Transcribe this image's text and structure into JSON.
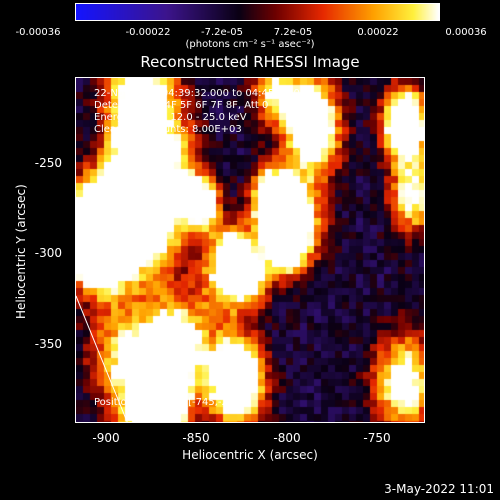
{
  "colorbar": {
    "ticks": [
      "-0.00036",
      "-0.00022",
      "-7.2e-05",
      "7.2e-05",
      "0.00022",
      "0.00036"
    ],
    "units": "(photons cm⁻² s⁻¹ asec⁻²)"
  },
  "title": "Reconstructed RHESSI Image",
  "info": {
    "time": "22-Nov-2005 04:39:32.000 to 04:45:32.000",
    "detectors": "Detectors: 3F 4F 5F 6F 7F 8F, Att 0",
    "energy": "Energy Range: 12.0 - 25.0 keV",
    "clean": "Clean    Total counts: 8.00E+03",
    "peak": "Position of peak = [-745,-226]"
  },
  "axes": {
    "xlabel": "Heliocentric X (arcsec)",
    "ylabel": "Heliocentric Y (arcsec)",
    "xticks": [
      "-900",
      "-850",
      "-800",
      "-750"
    ],
    "yticks": [
      "-250",
      "-300",
      "-350"
    ]
  },
  "timestamp": "3-May-2022 11:01"
}
